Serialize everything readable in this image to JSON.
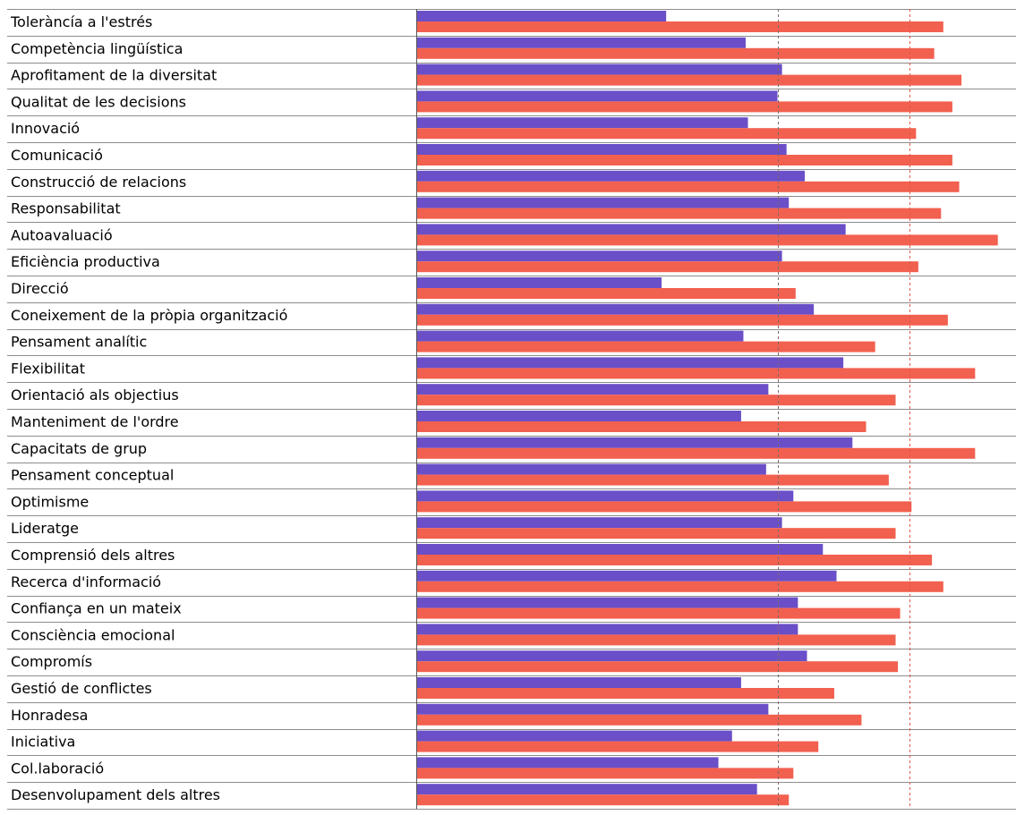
{
  "colors": {
    "series_a": "#6a4fc8",
    "series_b": "#f2604f",
    "grid": "#8c8c8c",
    "ref_line_a": "#7a6a6a",
    "ref_line_b": "#e0584a"
  },
  "chart_data": {
    "type": "bar",
    "orientation": "horizontal",
    "categories": [
      "Toleràncía a l'estrés",
      "Competència lingüística",
      "Aprofitament de la diversitat",
      "Qualitat de les decisions",
      "Innovació",
      "Comunicació",
      "Construcció de relacions",
      "Responsabilitat",
      "Autoavaluació",
      "Eficiència productiva",
      "Direcció",
      "Coneixement de la pròpia organització",
      "Pensament analític",
      "Flexibilitat",
      "Orientació als objectius",
      "Manteniment de l'ordre",
      "Capacitats de grup",
      "Pensament conceptual",
      "Optimisme",
      "Lideratge",
      "Comprensió dels altres",
      "Recerca d'informació",
      "Confiança en un mateix",
      "Consciència emocional",
      "Compromís",
      "Gestió de conflictes",
      "Honradesa",
      "Iniciativa",
      "Col.laboració",
      "Desenvolupament dels altres"
    ],
    "series": [
      {
        "values": [
          5.5,
          7.25,
          8.05,
          7.95,
          7.3,
          8.15,
          8.55,
          8.2,
          9.45,
          8.05,
          5.4,
          8.75,
          7.2,
          9.4,
          7.75,
          7.15,
          9.6,
          7.7,
          8.3,
          8.05,
          8.95,
          9.25,
          8.4,
          8.4,
          8.6,
          7.15,
          7.75,
          6.95,
          6.65,
          7.5
        ]
      },
      {
        "values": [
          11.6,
          11.4,
          12.0,
          11.8,
          11.0,
          11.8,
          11.95,
          11.55,
          12.8,
          11.05,
          8.35,
          11.7,
          10.1,
          12.3,
          10.55,
          9.9,
          12.3,
          10.4,
          10.9,
          10.55,
          11.35,
          11.6,
          10.65,
          10.55,
          10.6,
          9.2,
          9.8,
          8.85,
          8.3,
          8.2
        ]
      }
    ],
    "xlim": [
      0,
      13.2
    ],
    "reference_lines": [
      7.95,
      10.85
    ],
    "grid": false,
    "legend": "none"
  }
}
